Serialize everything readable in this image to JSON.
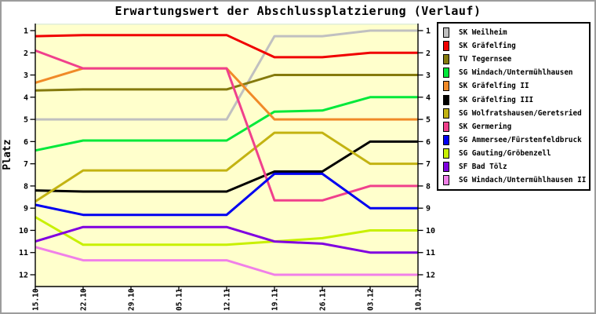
{
  "frame": {
    "border_color": "#9c9c9c",
    "background": "#ffffff"
  },
  "chart_data": {
    "type": "line",
    "title": "Erwartungswert der Abschlussplatzierung (Verlauf)",
    "ylabel": "Platz",
    "x_tick_labels": [
      "15.10",
      "22.10",
      "29.10",
      "05.11",
      "12.11",
      "19.11",
      "26.11",
      "03.12",
      "10.12"
    ],
    "y_tick_labels": [
      "1",
      "2",
      "3",
      "4",
      "5",
      "6",
      "7",
      "8",
      "9",
      "10",
      "11",
      "12"
    ],
    "y_axis": {
      "min": 1,
      "max": 12,
      "reversed": true
    },
    "grid": false,
    "plot_background": "#ffffcc",
    "axis_color": "#000000",
    "plot_top_border_color": "#dfeeda",
    "legend_position": "right",
    "series": [
      {
        "name": "SK Weilheim",
        "color": "#c0c0c0",
        "values": [
          5.0,
          5.0,
          5.0,
          5.0,
          5.0,
          1.25,
          1.25,
          1.0,
          1.0
        ]
      },
      {
        "name": "SK Gräfelfing",
        "color": "#f00000",
        "values": [
          1.25,
          1.2,
          1.2,
          1.2,
          1.2,
          2.2,
          2.2,
          2.0,
          2.0
        ]
      },
      {
        "name": "TV Tegernsee",
        "color": "#857a0d",
        "values": [
          3.7,
          3.65,
          3.65,
          3.65,
          3.65,
          3.0,
          3.0,
          3.0,
          3.0
        ]
      },
      {
        "name": "SG Windach/Untermühlhausen",
        "color": "#00e93a",
        "values": [
          6.4,
          5.95,
          5.95,
          5.95,
          5.95,
          4.65,
          4.6,
          4.0,
          4.0
        ]
      },
      {
        "name": "SK Gräfelfing II",
        "color": "#f08a28",
        "values": [
          3.35,
          2.7,
          2.7,
          2.7,
          2.7,
          5.0,
          5.0,
          5.0,
          5.0
        ]
      },
      {
        "name": "SK Gräfelfing III",
        "color": "#000000",
        "values": [
          8.2,
          8.25,
          8.25,
          8.25,
          8.25,
          7.35,
          7.35,
          6.0,
          6.0
        ]
      },
      {
        "name": "SG Wolfratshausen/Geretsried",
        "color": "#c3b312",
        "values": [
          8.7,
          7.3,
          7.3,
          7.3,
          7.3,
          5.6,
          5.6,
          7.0,
          7.0
        ]
      },
      {
        "name": "SK Germering",
        "color": "#f0408c",
        "values": [
          1.9,
          2.7,
          2.7,
          2.7,
          2.7,
          8.65,
          8.65,
          8.0,
          8.0
        ]
      },
      {
        "name": "SG Ammersee/Fürstenfeldbruck",
        "color": "#0000f0",
        "values": [
          8.85,
          9.3,
          9.3,
          9.3,
          9.3,
          7.45,
          7.45,
          9.0,
          9.0
        ]
      },
      {
        "name": "SG Gauting/Gröbenzell",
        "color": "#c8f000",
        "values": [
          9.4,
          10.65,
          10.65,
          10.65,
          10.65,
          10.5,
          10.35,
          10.0,
          10.0
        ]
      },
      {
        "name": "SF Bad Tölz",
        "color": "#8000e0",
        "values": [
          10.5,
          9.85,
          9.85,
          9.85,
          9.85,
          10.5,
          10.6,
          11.0,
          11.0
        ]
      },
      {
        "name": "SG Windach/Untermühlhausen II",
        "color": "#f080e8",
        "values": [
          10.75,
          11.35,
          11.35,
          11.35,
          11.35,
          12.0,
          12.0,
          12.0,
          12.0
        ]
      }
    ]
  }
}
